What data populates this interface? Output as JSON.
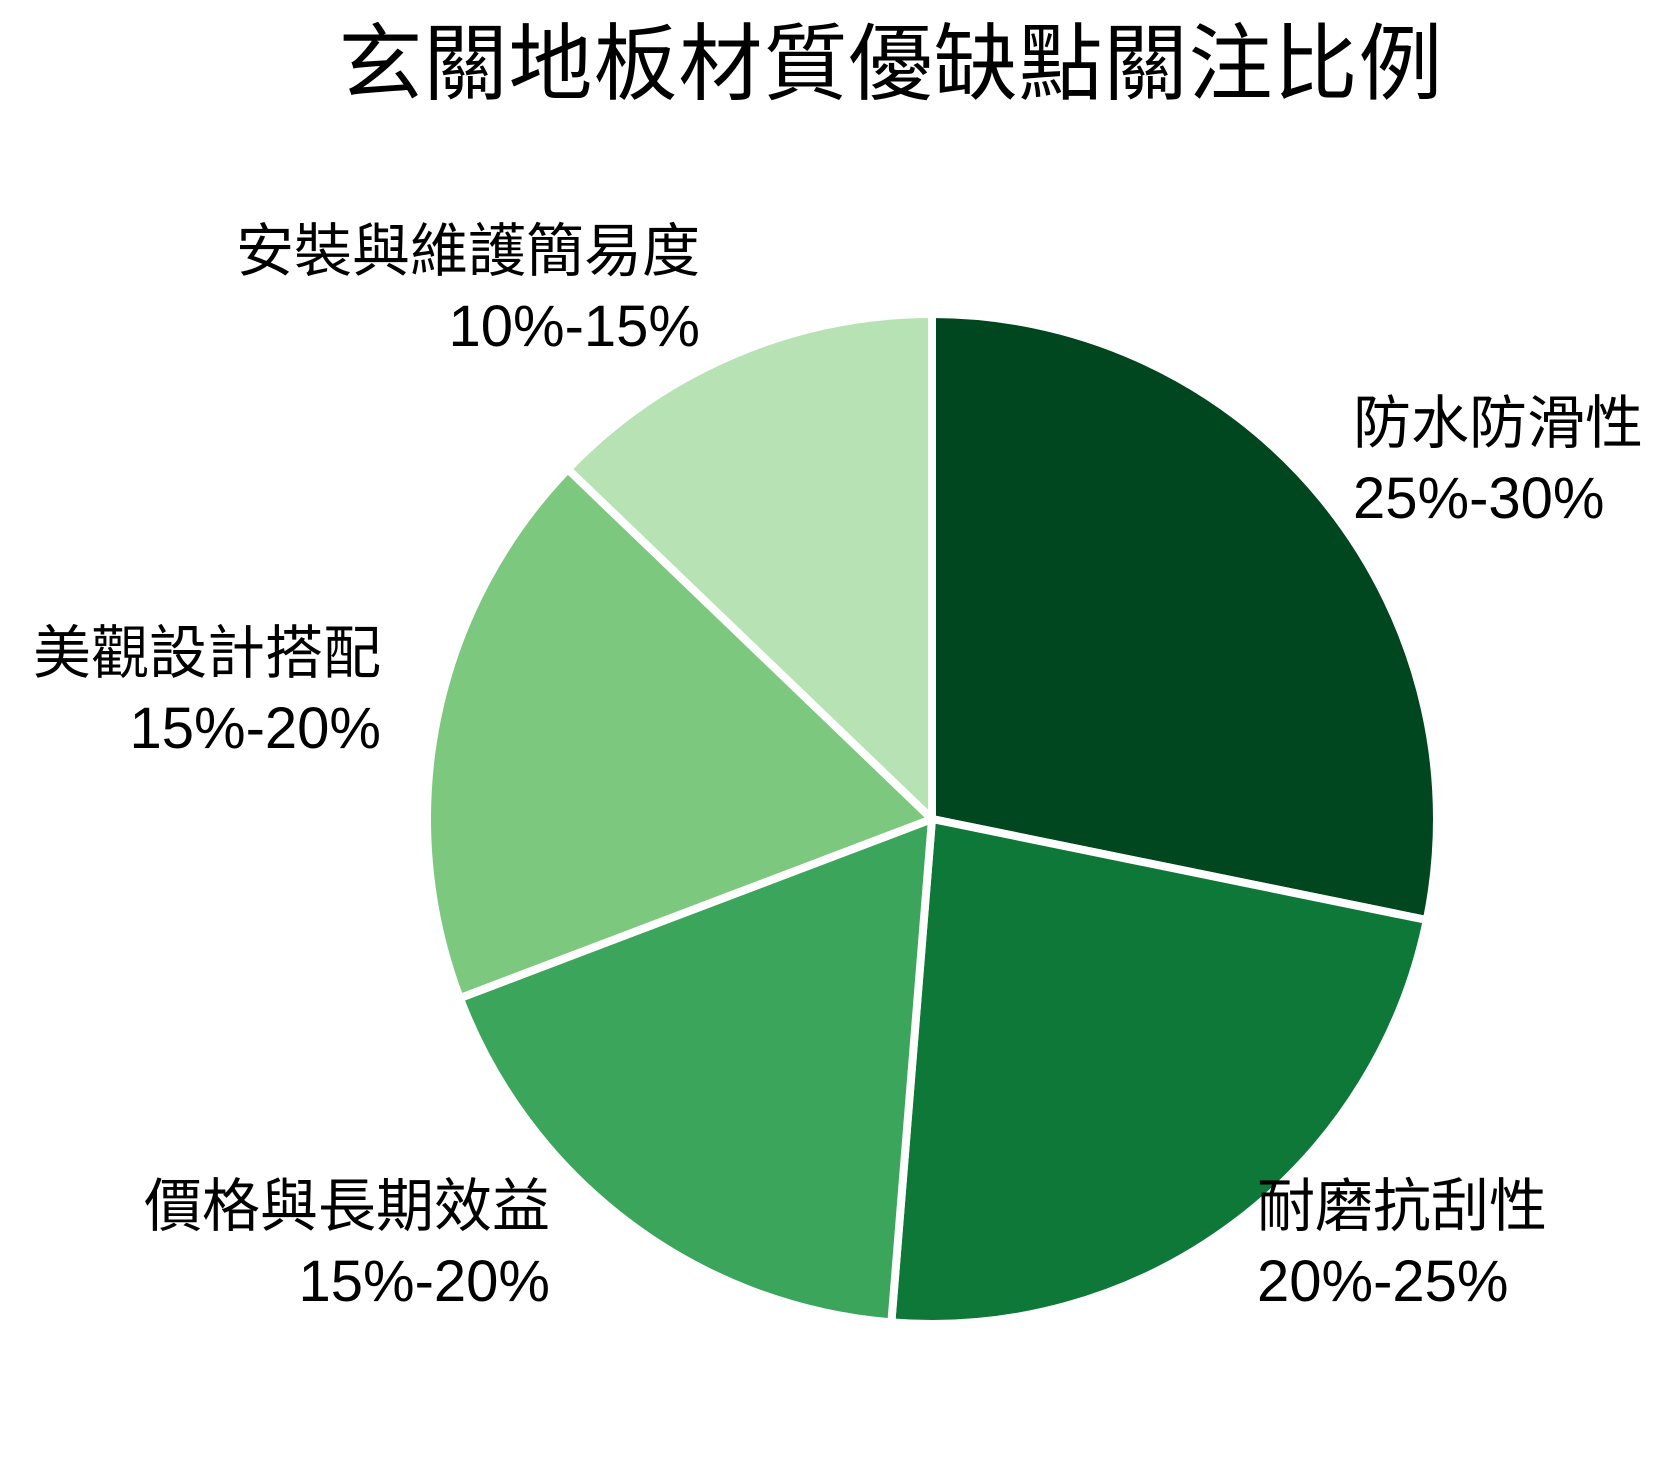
{
  "title": "玄關地板材質優缺點關注比例",
  "chart_data": {
    "type": "pie",
    "title": "玄關地板材質優缺點關注比例",
    "start_angle_deg_clockwise_from_north": 0,
    "direction": "clockwise",
    "legend": "none",
    "label_style": "outside, two lines (name + percentage range)",
    "slice_border_color": "#ffffff",
    "slice_border_width_px": 8,
    "slices": [
      {
        "label": "防水防滑性",
        "range_label": "25%-30%",
        "midpoint_value": 27.5,
        "color": "#00461e"
      },
      {
        "label": "耐磨抗刮性",
        "range_label": "20%-25%",
        "midpoint_value": 22.5,
        "color": "#0d7837"
      },
      {
        "label": "價格與長期效益",
        "range_label": "15%-20%",
        "midpoint_value": 17.5,
        "color": "#3ba55c"
      },
      {
        "label": "美觀設計搭配",
        "range_label": "15%-20%",
        "midpoint_value": 17.5,
        "color": "#7dc87f"
      },
      {
        "label": "安裝與維護簡易度",
        "range_label": "10%-15%",
        "midpoint_value": 12.5,
        "color": "#b7e2b3"
      }
    ]
  }
}
